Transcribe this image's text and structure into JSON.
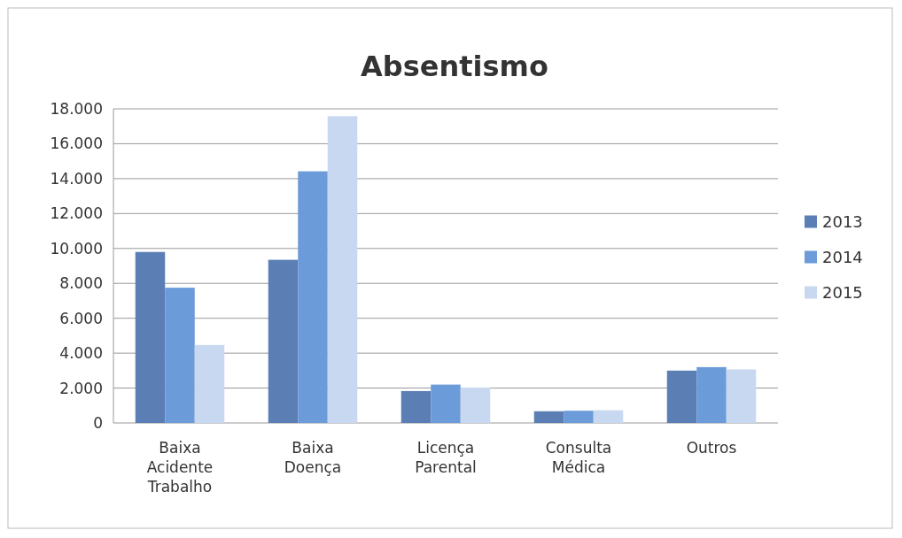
{
  "chart_data": {
    "type": "bar",
    "title": "Absentismo",
    "categories": [
      "Baixa Acidente Trabalho",
      "Baixa Doença",
      "Licença Parental",
      "Consulta Médica",
      "Outros"
    ],
    "series": [
      {
        "name": "2013",
        "color": "#5b7fb5",
        "values": [
          9800,
          9350,
          1830,
          670,
          3000
        ]
      },
      {
        "name": "2014",
        "color": "#6b9bd8",
        "values": [
          7750,
          14420,
          2200,
          700,
          3200
        ]
      },
      {
        "name": "2015",
        "color": "#c8d8f0",
        "values": [
          4470,
          17580,
          2030,
          730,
          3070
        ]
      }
    ],
    "ylim": [
      0,
      18000
    ],
    "yticks": [
      {
        "value": 0,
        "label": "0"
      },
      {
        "value": 2000,
        "label": "2.000"
      },
      {
        "value": 4000,
        "label": "4.000"
      },
      {
        "value": 6000,
        "label": "6.000"
      },
      {
        "value": 8000,
        "label": "8.000"
      },
      {
        "value": 10000,
        "label": "10.000"
      },
      {
        "value": 12000,
        "label": "12.000"
      },
      {
        "value": 14000,
        "label": "14.000"
      },
      {
        "value": 16000,
        "label": "16.000"
      },
      {
        "value": 18000,
        "label": "18.000"
      }
    ],
    "grid": "y",
    "legend": "right"
  }
}
